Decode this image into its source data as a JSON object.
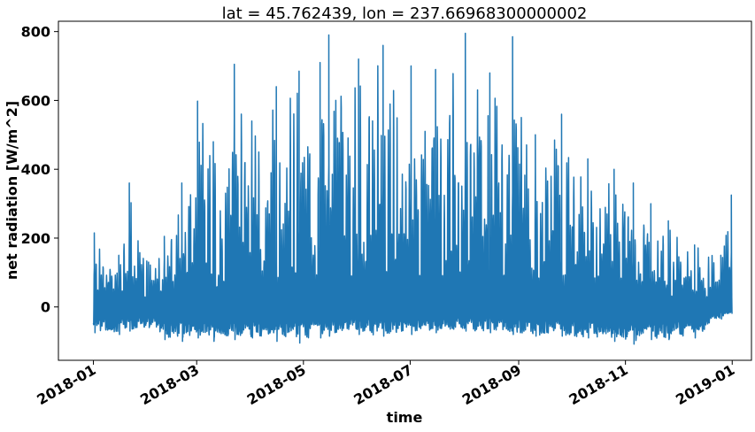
{
  "chart_data": {
    "type": "line",
    "title": "lat = 45.762439, lon = 237.66968300000002",
    "xlabel": "time",
    "ylabel": "net radiation [W/m^2]",
    "x_range": [
      "2017-12-12",
      "2019-01-12"
    ],
    "ylim": [
      -155,
      830
    ],
    "grid": false,
    "legend": "none",
    "line_color": "#1f77b4",
    "yticks": [
      {
        "value": 0,
        "label": "0"
      },
      {
        "value": 200,
        "label": "200"
      },
      {
        "value": 400,
        "label": "400"
      },
      {
        "value": 600,
        "label": "600"
      },
      {
        "value": 800,
        "label": "800"
      }
    ],
    "xticks": [
      {
        "date": "2018-01-01",
        "label": "2018-01"
      },
      {
        "date": "2018-03-01",
        "label": "2018-03"
      },
      {
        "date": "2018-05-01",
        "label": "2018-05"
      },
      {
        "date": "2018-07-01",
        "label": "2018-07"
      },
      {
        "date": "2018-09-01",
        "label": "2018-09"
      },
      {
        "date": "2018-11-01",
        "label": "2018-11"
      },
      {
        "date": "2019-01-01",
        "label": "2019-01"
      }
    ],
    "series": [
      {
        "x_start": "2018-01-01",
        "x_end": "2018-12-31",
        "envelope": [
          {
            "date": "2018-01-01",
            "min": -75,
            "max": 215
          },
          {
            "date": "2018-01-15",
            "min": -80,
            "max": 150
          },
          {
            "date": "2018-01-21",
            "min": -70,
            "max": 360
          },
          {
            "date": "2018-02-01",
            "min": -60,
            "max": 130
          },
          {
            "date": "2018-02-10",
            "min": -95,
            "max": 205
          },
          {
            "date": "2018-02-20",
            "min": -100,
            "max": 360
          },
          {
            "date": "2018-03-01",
            "min": -90,
            "max": 598
          },
          {
            "date": "2018-03-10",
            "min": -100,
            "max": 480
          },
          {
            "date": "2018-03-22",
            "min": -95,
            "max": 705
          },
          {
            "date": "2018-04-01",
            "min": -90,
            "max": 540
          },
          {
            "date": "2018-04-15",
            "min": -100,
            "max": 640
          },
          {
            "date": "2018-04-28",
            "min": -105,
            "max": 685
          },
          {
            "date": "2018-05-10",
            "min": -90,
            "max": 710
          },
          {
            "date": "2018-05-15",
            "min": -85,
            "max": 790
          },
          {
            "date": "2018-06-01",
            "min": -80,
            "max": 720
          },
          {
            "date": "2018-06-15",
            "min": -85,
            "max": 760
          },
          {
            "date": "2018-07-01",
            "min": -80,
            "max": 700
          },
          {
            "date": "2018-07-15",
            "min": -75,
            "max": 690
          },
          {
            "date": "2018-08-01",
            "min": -70,
            "max": 795
          },
          {
            "date": "2018-08-15",
            "min": -75,
            "max": 680
          },
          {
            "date": "2018-08-28",
            "min": -80,
            "max": 785
          },
          {
            "date": "2018-09-10",
            "min": -85,
            "max": 500
          },
          {
            "date": "2018-09-25",
            "min": -85,
            "max": 560
          },
          {
            "date": "2018-10-10",
            "min": -90,
            "max": 430
          },
          {
            "date": "2018-10-25",
            "min": -100,
            "max": 400
          },
          {
            "date": "2018-11-05",
            "min": -108,
            "max": 360
          },
          {
            "date": "2018-11-15",
            "min": -95,
            "max": 300
          },
          {
            "date": "2018-11-25",
            "min": -95,
            "max": 250
          },
          {
            "date": "2018-12-10",
            "min": -90,
            "max": 180
          },
          {
            "date": "2018-12-25",
            "min": -35,
            "max": 150
          },
          {
            "date": "2018-12-31",
            "min": -20,
            "max": 325
          }
        ]
      }
    ]
  }
}
